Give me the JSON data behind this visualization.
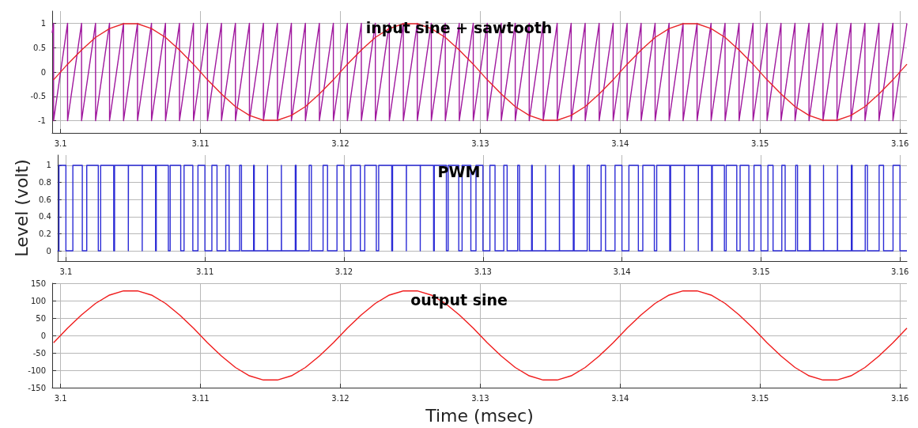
{
  "chart_data": [
    {
      "type": "line",
      "title": "input sine + sawtooth",
      "xlim": [
        3.0994,
        3.1605
      ],
      "xticks": [
        3.1,
        3.11,
        3.12,
        3.13,
        3.14,
        3.15,
        3.16
      ],
      "ylim": [
        -1.25,
        1.25
      ],
      "yticks": [
        -1,
        -0.5,
        0,
        0.5,
        1
      ],
      "grid": true,
      "marker": "none",
      "series": [
        {
          "color": "#a0189e",
          "x": [
            3.0994,
            3.0995,
            3.0995,
            3.1005,
            3.1005,
            3.1015,
            3.1015,
            3.1025,
            3.1025,
            3.1035,
            3.1035,
            3.1045,
            3.1045,
            3.1055,
            3.1055,
            3.1065,
            3.1065,
            3.1075,
            3.1075,
            3.1085,
            3.1085,
            3.1095,
            3.1095,
            3.1105,
            3.1105,
            3.1115,
            3.1115,
            3.1125,
            3.1125,
            3.1135,
            3.1135,
            3.1145,
            3.1145,
            3.1155,
            3.1155,
            3.1165,
            3.1165,
            3.1175,
            3.1175,
            3.1185,
            3.1185,
            3.1195,
            3.1195,
            3.1205,
            3.1205,
            3.1215,
            3.1215,
            3.1225,
            3.1225,
            3.1235,
            3.1235,
            3.1245,
            3.1245,
            3.1255,
            3.1255,
            3.1265,
            3.1265,
            3.1275,
            3.1275,
            3.1285,
            3.1285,
            3.1295,
            3.1295,
            3.1305,
            3.1305,
            3.1315,
            3.1315,
            3.1325,
            3.1325,
            3.1335,
            3.1335,
            3.1345,
            3.1345,
            3.1355,
            3.1355,
            3.1365,
            3.1365,
            3.1375,
            3.1375,
            3.1385,
            3.1385,
            3.1395,
            3.1395,
            3.1405,
            3.1405,
            3.1415,
            3.1415,
            3.1425,
            3.1425,
            3.1435,
            3.1435,
            3.1445,
            3.1445,
            3.1455,
            3.1455,
            3.1465,
            3.1465,
            3.1475,
            3.1475,
            3.1485,
            3.1485,
            3.1495,
            3.1495,
            3.1505,
            3.1505,
            3.1515,
            3.1515,
            3.1525,
            3.1525,
            3.1535,
            3.1535,
            3.1545,
            3.1545,
            3.1555,
            3.1555,
            3.1565,
            3.1565,
            3.1575,
            3.1575,
            3.1585,
            3.1585,
            3.1595,
            3.1595,
            3.1605
          ],
          "values": [
            0.8,
            1,
            -1,
            1,
            -1,
            1,
            -1,
            1,
            -1,
            1,
            -1,
            1,
            -1,
            1,
            -1,
            1,
            -1,
            1,
            -1,
            1,
            -1,
            1,
            -1,
            1,
            -1,
            1,
            -1,
            1,
            -1,
            1,
            -1,
            1,
            -1,
            1,
            -1,
            1,
            -1,
            1,
            -1,
            1,
            -1,
            1,
            -1,
            1,
            -1,
            1,
            -1,
            1,
            -1,
            1,
            -1,
            1,
            -1,
            1,
            -1,
            1,
            -1,
            1,
            -1,
            1,
            -1,
            1,
            -1,
            1,
            -1,
            1,
            -1,
            1,
            -1,
            1,
            -1,
            1,
            -1,
            1,
            -1,
            1,
            -1,
            1,
            -1,
            1,
            -1,
            1,
            -1,
            1,
            -1,
            1,
            -1,
            1,
            -1,
            1,
            -1,
            1,
            -1,
            1,
            -1,
            1,
            -1,
            1,
            -1,
            1,
            -1,
            1,
            -1,
            1,
            -1,
            1,
            -1,
            1,
            -1,
            1,
            -1,
            1,
            -1,
            1,
            -1,
            1,
            -1,
            1,
            -1,
            1,
            -1,
            1,
            -1,
            1
          ]
        },
        {
          "color": "#e8262b",
          "x": [
            3.0995,
            3.1005,
            3.1015,
            3.1025,
            3.1035,
            3.1045,
            3.1055,
            3.1065,
            3.1075,
            3.1085,
            3.1095,
            3.1105,
            3.1115,
            3.1125,
            3.1135,
            3.1145,
            3.1155,
            3.1165,
            3.1175,
            3.1185,
            3.1195,
            3.1205,
            3.1215,
            3.1225,
            3.1235,
            3.1245,
            3.1255,
            3.1265,
            3.1275,
            3.1285,
            3.1295,
            3.1305,
            3.1315,
            3.1325,
            3.1335,
            3.1345,
            3.1355,
            3.1365,
            3.1375,
            3.1385,
            3.1395,
            3.1405,
            3.1415,
            3.1425,
            3.1435,
            3.1445,
            3.1455,
            3.1465,
            3.1475,
            3.1485,
            3.1495,
            3.1505,
            3.1515,
            3.1525,
            3.1535,
            3.1545,
            3.1555,
            3.1565,
            3.1575,
            3.1585,
            3.1595,
            3.1605
          ],
          "values": [
            -0.16,
            0.16,
            0.45,
            0.71,
            0.89,
            0.99,
            0.99,
            0.89,
            0.71,
            0.45,
            0.16,
            -0.16,
            -0.45,
            -0.71,
            -0.89,
            -0.99,
            -0.99,
            -0.89,
            -0.71,
            -0.45,
            -0.16,
            0.16,
            0.45,
            0.71,
            0.89,
            0.99,
            0.99,
            0.89,
            0.71,
            0.45,
            0.16,
            -0.16,
            -0.45,
            -0.71,
            -0.89,
            -0.99,
            -0.99,
            -0.89,
            -0.71,
            -0.45,
            -0.16,
            0.16,
            0.45,
            0.71,
            0.89,
            0.99,
            0.99,
            0.89,
            0.71,
            0.45,
            0.16,
            -0.16,
            -0.45,
            -0.71,
            -0.89,
            -0.99,
            -0.99,
            -0.89,
            -0.71,
            -0.45,
            -0.16,
            0.16
          ]
        }
      ]
    },
    {
      "type": "step",
      "title": "PWM",
      "ylabel": "Level (volt)",
      "xlim": [
        3.0994,
        3.1605
      ],
      "xticks": [
        3.1,
        3.11,
        3.12,
        3.13,
        3.14,
        3.15,
        3.16
      ],
      "ylim": [
        -0.12,
        1.12
      ],
      "yticks": [
        0,
        0.2,
        0.4,
        0.6,
        0.8,
        1
      ],
      "grid": true,
      "marker": "none",
      "series": [
        {
          "color": "#2b2bd6",
          "x": [
            3.0994,
            3.0995,
            3.1,
            3.1005,
            3.10118,
            3.1015,
            3.10233,
            3.1025,
            3.10344,
            3.1035,
            3.10449,
            3.1045,
            3.10549,
            3.1055,
            3.10645,
            3.1065,
            3.10737,
            3.1075,
            3.10826,
            3.1085,
            3.10913,
            3.1095,
            3.11,
            3.1105,
            3.11087,
            3.1115,
            3.11174,
            3.1125,
            3.11263,
            3.1135,
            3.11355,
            3.1145,
            3.11451,
            3.1155,
            3.11551,
            3.1165,
            3.11656,
            3.1175,
            3.11766,
            3.1185,
            3.11882,
            3.1195,
            3.12,
            3.1205,
            3.12118,
            3.1215,
            3.12233,
            3.1225,
            3.12344,
            3.1235,
            3.12449,
            3.1245,
            3.12549,
            3.1255,
            3.12645,
            3.1265,
            3.12737,
            3.1275,
            3.12826,
            3.1285,
            3.12913,
            3.1295,
            3.13,
            3.1305,
            3.13087,
            3.1315,
            3.13174,
            3.1325,
            3.13263,
            3.1335,
            3.13355,
            3.1345,
            3.13451,
            3.1355,
            3.13551,
            3.1365,
            3.13656,
            3.1375,
            3.13766,
            3.1385,
            3.13882,
            3.1395,
            3.14,
            3.1405,
            3.14118,
            3.1415,
            3.14233,
            3.1425,
            3.14344,
            3.1435,
            3.14449,
            3.1445,
            3.14549,
            3.1455,
            3.14645,
            3.1465,
            3.14737,
            3.1475,
            3.14826,
            3.1485,
            3.14913,
            3.1495,
            3.15,
            3.1505,
            3.15087,
            3.1515,
            3.15174,
            3.1525,
            3.15263,
            3.1535,
            3.15355,
            3.1545,
            3.15451,
            3.1555,
            3.15551,
            3.1565,
            3.15656,
            3.1575,
            3.15766,
            3.1585,
            3.15882,
            3.1595,
            3.16,
            3.1605
          ],
          "values": [
            0,
            1,
            0,
            1,
            0,
            1,
            0,
            1,
            0,
            1,
            0,
            1,
            0,
            1,
            0,
            1,
            0,
            1,
            0,
            1,
            0,
            1,
            0,
            1,
            0,
            1,
            0,
            1,
            0,
            1,
            0,
            1,
            0,
            1,
            0,
            1,
            0,
            1,
            0,
            1,
            0,
            1,
            0,
            1,
            0,
            1,
            0,
            1,
            0,
            1,
            0,
            1,
            0,
            1,
            0,
            1,
            0,
            1,
            0,
            1,
            0,
            1,
            0,
            1,
            0,
            1,
            0,
            1,
            0,
            1,
            0,
            1,
            0,
            1,
            0,
            1,
            0,
            1,
            0,
            1,
            0,
            1,
            0,
            1,
            0,
            1,
            0,
            1,
            0,
            1,
            0,
            1,
            0,
            1,
            0,
            1,
            0,
            1,
            0,
            1,
            0,
            1,
            0,
            1,
            0,
            1,
            0,
            1,
            0,
            1,
            0,
            1,
            0,
            1,
            0,
            1,
            0,
            1,
            0,
            1,
            0,
            1,
            0,
            0
          ]
        }
      ]
    },
    {
      "type": "line",
      "title": "output sine",
      "xlabel": "Time (msec)",
      "xlim": [
        3.0994,
        3.1605
      ],
      "xticks": [
        3.1,
        3.11,
        3.12,
        3.13,
        3.14,
        3.15,
        3.16
      ],
      "ylim": [
        -150,
        150
      ],
      "yticks": [
        -150,
        -100,
        -50,
        0,
        50,
        100,
        150
      ],
      "grid": true,
      "marker": "none",
      "series": [
        {
          "color": "#f01c1c",
          "x": [
            3.0995,
            3.1005,
            3.1015,
            3.1025,
            3.1035,
            3.1045,
            3.1055,
            3.1065,
            3.1075,
            3.1085,
            3.1095,
            3.1105,
            3.1115,
            3.1125,
            3.1135,
            3.1145,
            3.1155,
            3.1165,
            3.1175,
            3.1185,
            3.1195,
            3.1205,
            3.1215,
            3.1225,
            3.1235,
            3.1245,
            3.1255,
            3.1265,
            3.1275,
            3.1285,
            3.1295,
            3.1305,
            3.1315,
            3.1325,
            3.1335,
            3.1345,
            3.1355,
            3.1365,
            3.1375,
            3.1385,
            3.1395,
            3.1405,
            3.1415,
            3.1425,
            3.1435,
            3.1445,
            3.1455,
            3.1465,
            3.1475,
            3.1485,
            3.1495,
            3.1505,
            3.1515,
            3.1525,
            3.1535,
            3.1545,
            3.1555,
            3.1565,
            3.1575,
            3.1585,
            3.1595,
            3.1605
          ],
          "values": [
            -21,
            21,
            59,
            92,
            116,
            128,
            128,
            116,
            92,
            59,
            21,
            -21,
            -59,
            -92,
            -116,
            -128,
            -128,
            -116,
            -92,
            -59,
            -21,
            21,
            59,
            92,
            116,
            128,
            128,
            116,
            92,
            59,
            21,
            -21,
            -59,
            -92,
            -116,
            -128,
            -128,
            -116,
            -92,
            -59,
            -21,
            21,
            59,
            92,
            116,
            128,
            128,
            116,
            92,
            59,
            21,
            -21,
            -59,
            -92,
            -116,
            -128,
            -128,
            -116,
            -92,
            -59,
            -21,
            21
          ]
        }
      ]
    }
  ]
}
